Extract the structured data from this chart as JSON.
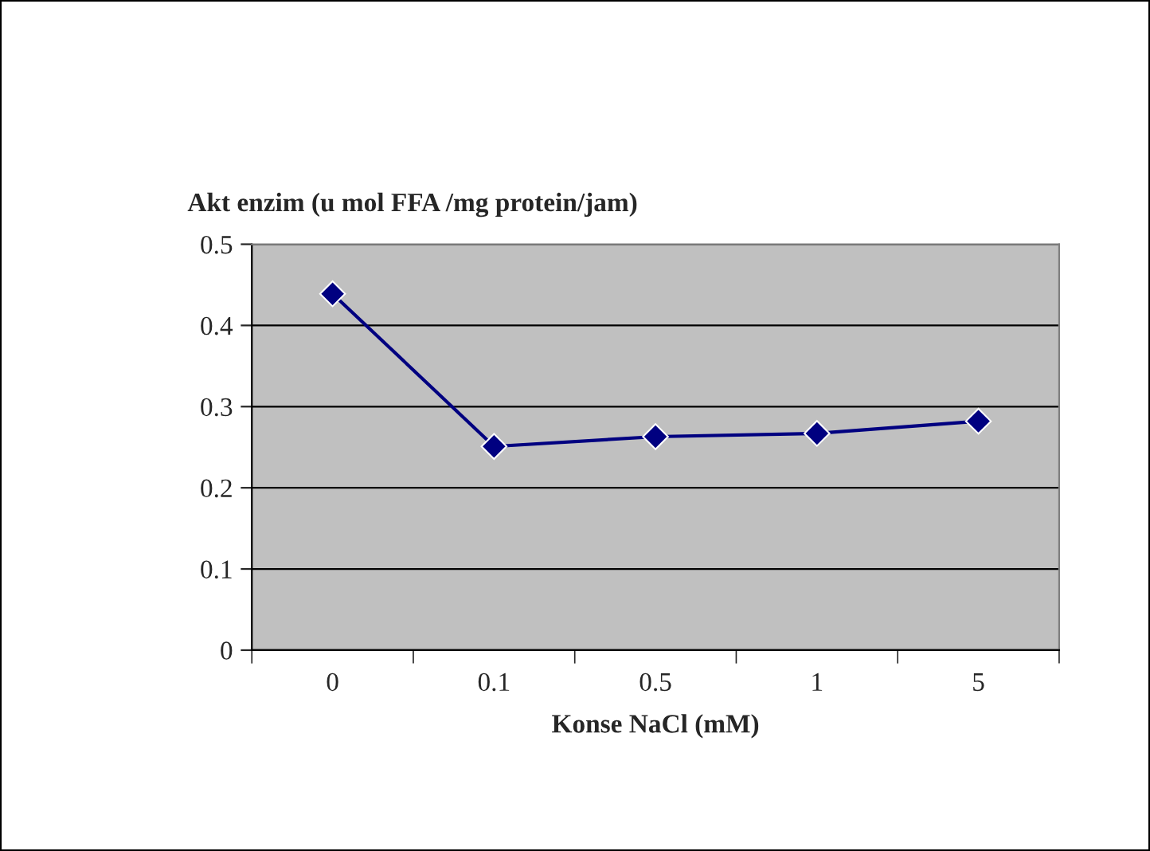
{
  "chart_data": {
    "type": "line",
    "xlabel": "Konse NaCl (mM)",
    "ylabel": "Akt enzim (u mol FFA /mg protein/jam)",
    "categories": [
      "0",
      "0.1",
      "0.5",
      "1",
      "5"
    ],
    "series": [
      {
        "color": "#000080",
        "values": [
          0.439,
          0.251,
          0.263,
          0.267,
          0.282
        ]
      }
    ],
    "ylim": [
      0,
      0.5
    ],
    "yticks": [
      0,
      0.1,
      0.2,
      0.3,
      0.4,
      0.5
    ],
    "grid": "y",
    "marker": "diamond",
    "line_style": "solid",
    "legend": false
  }
}
